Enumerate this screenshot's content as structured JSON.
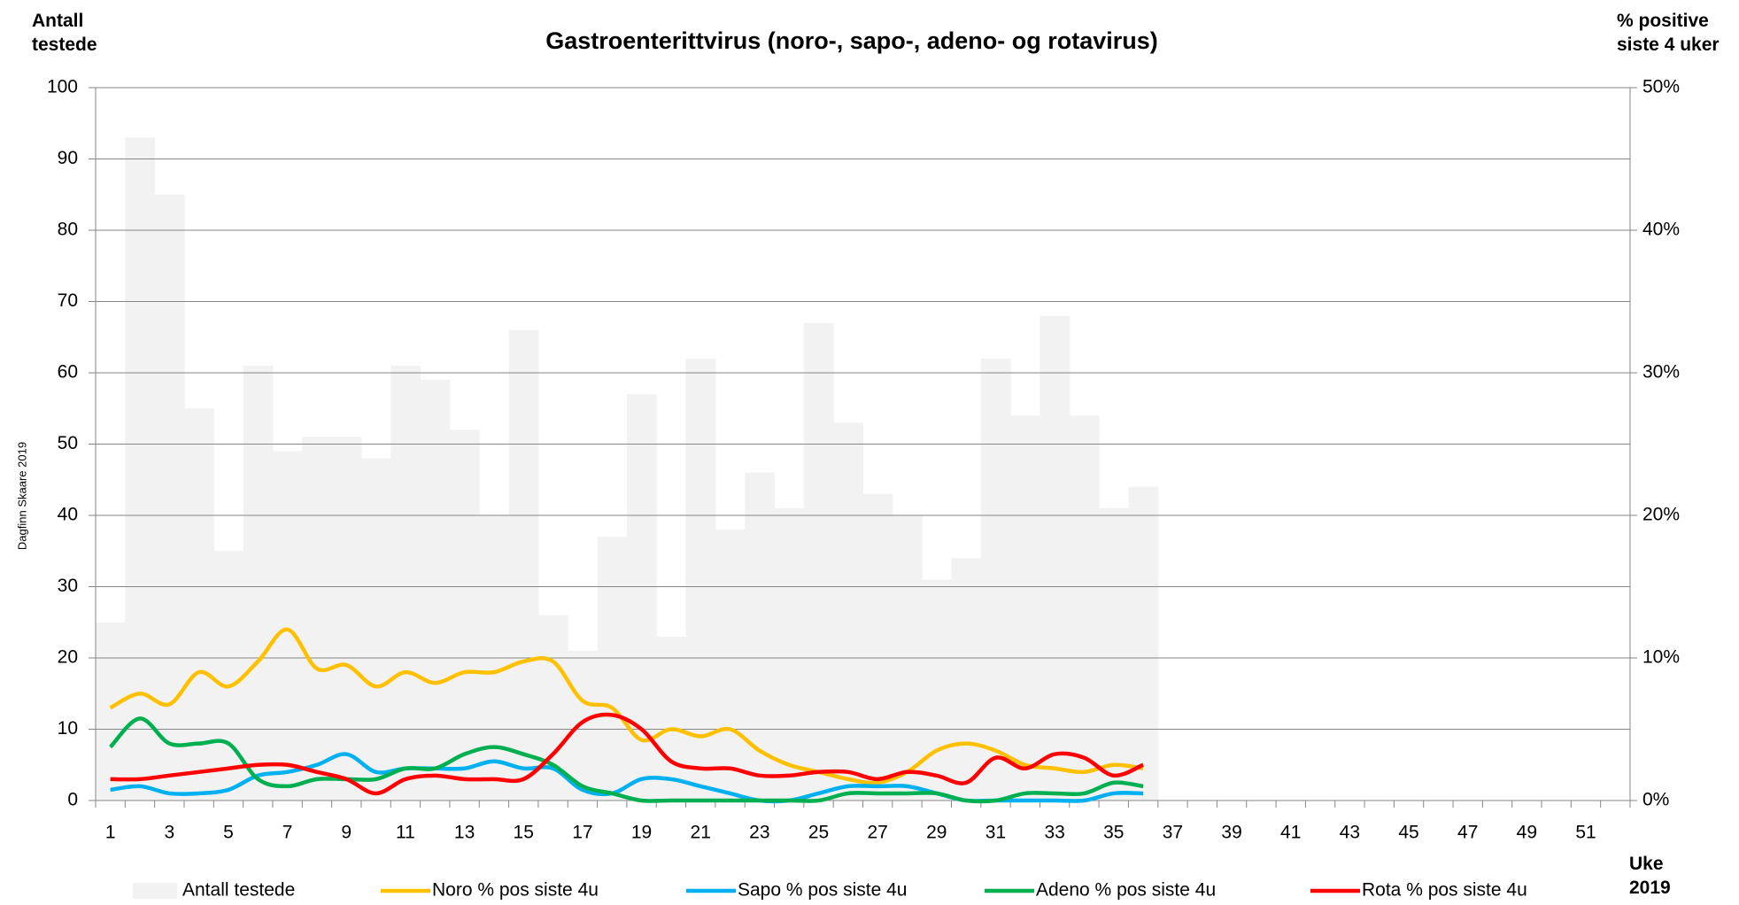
{
  "chart_data": {
    "type": "bar-line",
    "title": "Gastroenterittvirus (noro-, sapo-, adeno- og rotavirus)",
    "y_label": "Antall testede",
    "y2_label": "% positive siste 4 uker",
    "x_label": "Uke 2019",
    "watermark": "Dagfinn Skaare 2019",
    "categories": [
      "1",
      null,
      "3",
      null,
      "5",
      null,
      "7",
      null,
      "9",
      null,
      "11",
      null,
      "13",
      null,
      "15",
      null,
      "17",
      null,
      "19",
      null,
      "21",
      null,
      "23",
      null,
      "25",
      null,
      "27",
      null,
      "29",
      null,
      "31",
      null,
      "33",
      null,
      "35",
      null,
      "37",
      null,
      "39",
      null,
      "41",
      null,
      "43",
      null,
      "45",
      null,
      "47",
      null,
      "49",
      null,
      "51",
      null
    ],
    "ylim": [
      0,
      100
    ],
    "yticks": [
      0,
      10,
      20,
      30,
      40,
      50,
      60,
      70,
      80,
      90,
      100
    ],
    "y2lim": [
      0,
      50
    ],
    "y2ticks": [
      {
        "value": 0,
        "label": "0%"
      },
      {
        "value": 10,
        "label": "10%"
      },
      {
        "value": 20,
        "label": "20%"
      },
      {
        "value": 30,
        "label": "30%"
      },
      {
        "value": 40,
        "label": "40%"
      },
      {
        "value": 50,
        "label": "50%"
      }
    ],
    "grid": true,
    "series": [
      {
        "name": "Antall testede",
        "type": "bar",
        "color": "#f2f2f2",
        "values": [
          25,
          93,
          85,
          55,
          35,
          61,
          49,
          51,
          51,
          48,
          61,
          59,
          52,
          40,
          66,
          26,
          21,
          37,
          57,
          23,
          62,
          38,
          46,
          41,
          67,
          53,
          43,
          40,
          31,
          34,
          62,
          54,
          68,
          54,
          41,
          44,
          null,
          null,
          null,
          null,
          null,
          null,
          null,
          null,
          null,
          null,
          null,
          null,
          null,
          null,
          null,
          null
        ]
      },
      {
        "name": "Noro % pos siste 4u",
        "type": "line",
        "axis": "y2",
        "color": "#ffc000",
        "values": [
          6.5,
          7.5,
          6.75,
          9,
          8,
          9.75,
          12,
          9.25,
          9.5,
          8,
          9,
          8.25,
          9,
          9,
          9.75,
          9.75,
          7,
          6.5,
          4.25,
          5,
          4.5,
          5,
          3.5,
          2.5,
          2,
          1.5,
          1.25,
          2,
          3.5,
          4,
          3.5,
          2.5,
          2.25,
          2,
          2.5,
          2.25,
          null,
          null,
          null,
          null,
          null,
          null,
          null,
          null,
          null,
          null,
          null,
          null,
          null,
          null,
          null,
          null
        ]
      },
      {
        "name": "Sapo % pos siste 4u",
        "type": "line",
        "axis": "y2",
        "color": "#00b0f0",
        "values": [
          0.75,
          1,
          0.5,
          0.5,
          0.75,
          1.75,
          2,
          2.5,
          3.25,
          2,
          2.25,
          2.25,
          2.25,
          2.75,
          2.25,
          2.25,
          0.75,
          0.5,
          1.5,
          1.5,
          1,
          0.5,
          0,
          0,
          0.5,
          1,
          1,
          1,
          0.5,
          0,
          0,
          0,
          0,
          0,
          0.5,
          0.5,
          null,
          null,
          null,
          null,
          null,
          null,
          null,
          null,
          null,
          null,
          null,
          null,
          null,
          null,
          null,
          null
        ]
      },
      {
        "name": "Adeno % pos siste 4u",
        "type": "line",
        "axis": "y2",
        "color": "#00b050",
        "values": [
          3.75,
          5.75,
          4,
          4,
          4,
          1.5,
          1,
          1.5,
          1.5,
          1.5,
          2.25,
          2.25,
          3.25,
          3.75,
          3.25,
          2.5,
          1,
          0.5,
          0,
          0,
          0,
          0,
          0,
          0,
          0,
          0.5,
          0.5,
          0.5,
          0.5,
          0,
          0,
          0.5,
          0.5,
          0.5,
          1.25,
          1,
          null,
          null,
          null,
          null,
          null,
          null,
          null,
          null,
          null,
          null,
          null,
          null,
          null,
          null,
          null,
          null
        ]
      },
      {
        "name": "Rota % pos siste 4u",
        "type": "line",
        "axis": "y2",
        "color": "#ff0000",
        "values": [
          1.5,
          1.5,
          1.75,
          2,
          2.25,
          2.5,
          2.5,
          2,
          1.5,
          0.5,
          1.5,
          1.75,
          1.5,
          1.5,
          1.5,
          3.25,
          5.5,
          6,
          5,
          2.75,
          2.25,
          2.25,
          1.75,
          1.75,
          2,
          2,
          1.5,
          2,
          1.75,
          1.25,
          3,
          2.25,
          3.25,
          3,
          1.75,
          2.5,
          null,
          null,
          null,
          null,
          null,
          null,
          null,
          null,
          null,
          null,
          null,
          null,
          null,
          null,
          null,
          null
        ]
      }
    ]
  }
}
